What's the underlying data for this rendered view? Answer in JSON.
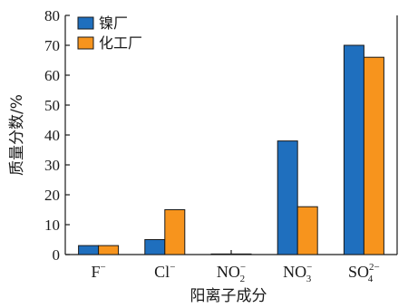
{
  "chart_data": {
    "type": "bar",
    "title": "",
    "xlabel": "阳离子成分",
    "ylabel": "质量分数/%",
    "ylim": [
      0,
      80
    ],
    "yticks": [
      "0",
      "10",
      "20",
      "30",
      "40",
      "50",
      "60",
      "70",
      "80"
    ],
    "categories": [
      {
        "base": "F",
        "sub": "",
        "sup": "−"
      },
      {
        "base": "Cl",
        "sub": "",
        "sup": "−"
      },
      {
        "base": "NO",
        "sub": "2",
        "sup": "−"
      },
      {
        "base": "NO",
        "sub": "3",
        "sup": "−"
      },
      {
        "base": "SO",
        "sub": "4",
        "sup": "2−"
      }
    ],
    "series": [
      {
        "name": "镍厂",
        "color": "#1f6fbe",
        "values": [
          3,
          5,
          0.2,
          38,
          70
        ]
      },
      {
        "name": "化工厂",
        "color": "#f7941d",
        "values": [
          3,
          15,
          0.2,
          16,
          66
        ]
      }
    ],
    "legend_position": "top-left",
    "grid": false
  }
}
